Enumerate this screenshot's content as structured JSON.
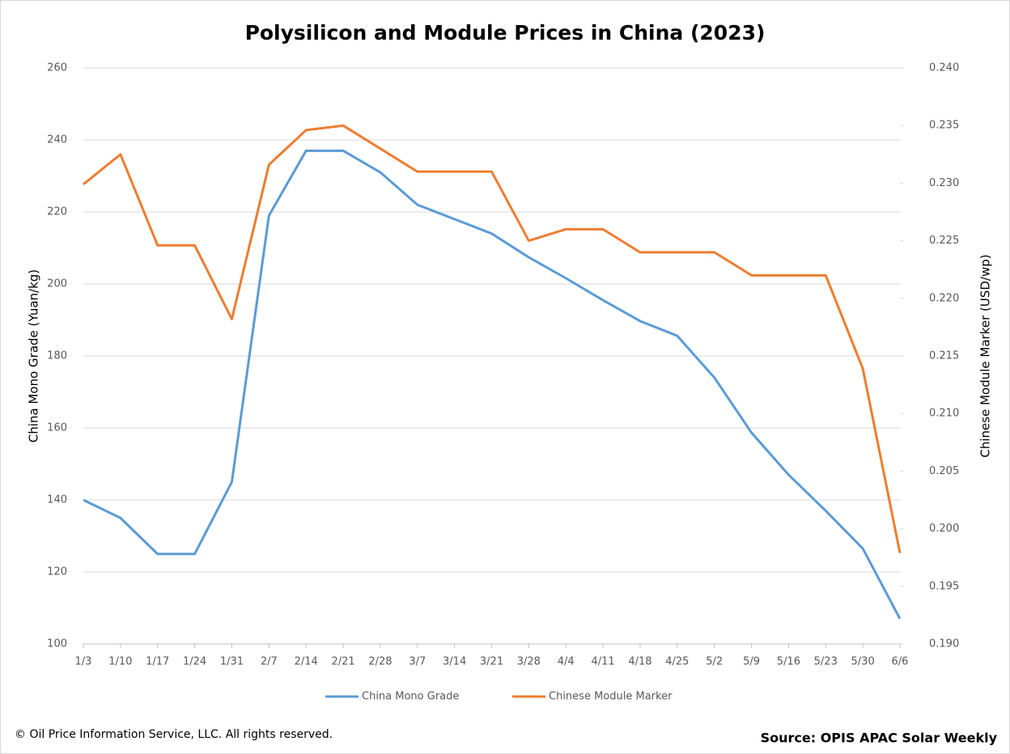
{
  "chart_data": {
    "type": "line",
    "title": "Polysilicon and Module Prices in China (2023)",
    "y_label": "China Mono Grade (Yuan/kg)",
    "y2_label": "Chinese Module Marker (USD/wp)",
    "categories": [
      "1/3",
      "1/10",
      "1/17",
      "1/24",
      "1/31",
      "2/7",
      "2/14",
      "2/21",
      "2/28",
      "3/7",
      "3/14",
      "3/21",
      "3/28",
      "4/4",
      "4/11",
      "4/18",
      "4/25",
      "5/2",
      "5/9",
      "5/16",
      "5/23",
      "5/30",
      "6/6"
    ],
    "series": [
      {
        "name": "China Mono Grade",
        "color": "#5b9bd5",
        "axis": "y",
        "values": [
          140,
          135,
          125,
          125,
          145,
          219,
          237,
          237,
          231,
          222,
          218,
          214,
          207.4,
          201.6,
          195.5,
          189.7,
          185.6,
          174,
          158.7,
          147,
          137,
          126.5,
          107
        ]
      },
      {
        "name": "Chinese Module Marker",
        "color": "#ed7d31",
        "axis": "y2",
        "values": [
          0.2299,
          0.2325,
          0.2246,
          0.2246,
          0.2182,
          0.2316,
          0.2346,
          0.235,
          0.233,
          0.231,
          0.231,
          0.231,
          0.225,
          0.226,
          0.226,
          0.224,
          0.224,
          0.224,
          0.222,
          0.222,
          0.222,
          0.2139,
          0.1979
        ]
      }
    ],
    "ylim": [
      100,
      260
    ],
    "yticks": [
      100,
      120,
      140,
      160,
      180,
      200,
      220,
      240,
      260
    ],
    "y2lim": [
      0.19,
      0.24
    ],
    "y2ticks": [
      {
        "value": 0.19,
        "label": "0.190"
      },
      {
        "value": 0.195,
        "label": "0.195"
      },
      {
        "value": 0.2,
        "label": "0.200"
      },
      {
        "value": 0.205,
        "label": "0.205"
      },
      {
        "value": 0.21,
        "label": "0.210"
      },
      {
        "value": 0.215,
        "label": "0.215"
      },
      {
        "value": 0.22,
        "label": "0.220"
      },
      {
        "value": 0.225,
        "label": "0.225"
      },
      {
        "value": 0.23,
        "label": "0.230"
      },
      {
        "value": 0.235,
        "label": "0.235"
      },
      {
        "value": 0.24,
        "label": "0.240"
      }
    ],
    "grid": true,
    "legend": "bottom",
    "copyright": "© Oil Price Information Service, LLC.  All rights reserved.",
    "source": "Source: OPIS APAC Solar Weekly"
  }
}
